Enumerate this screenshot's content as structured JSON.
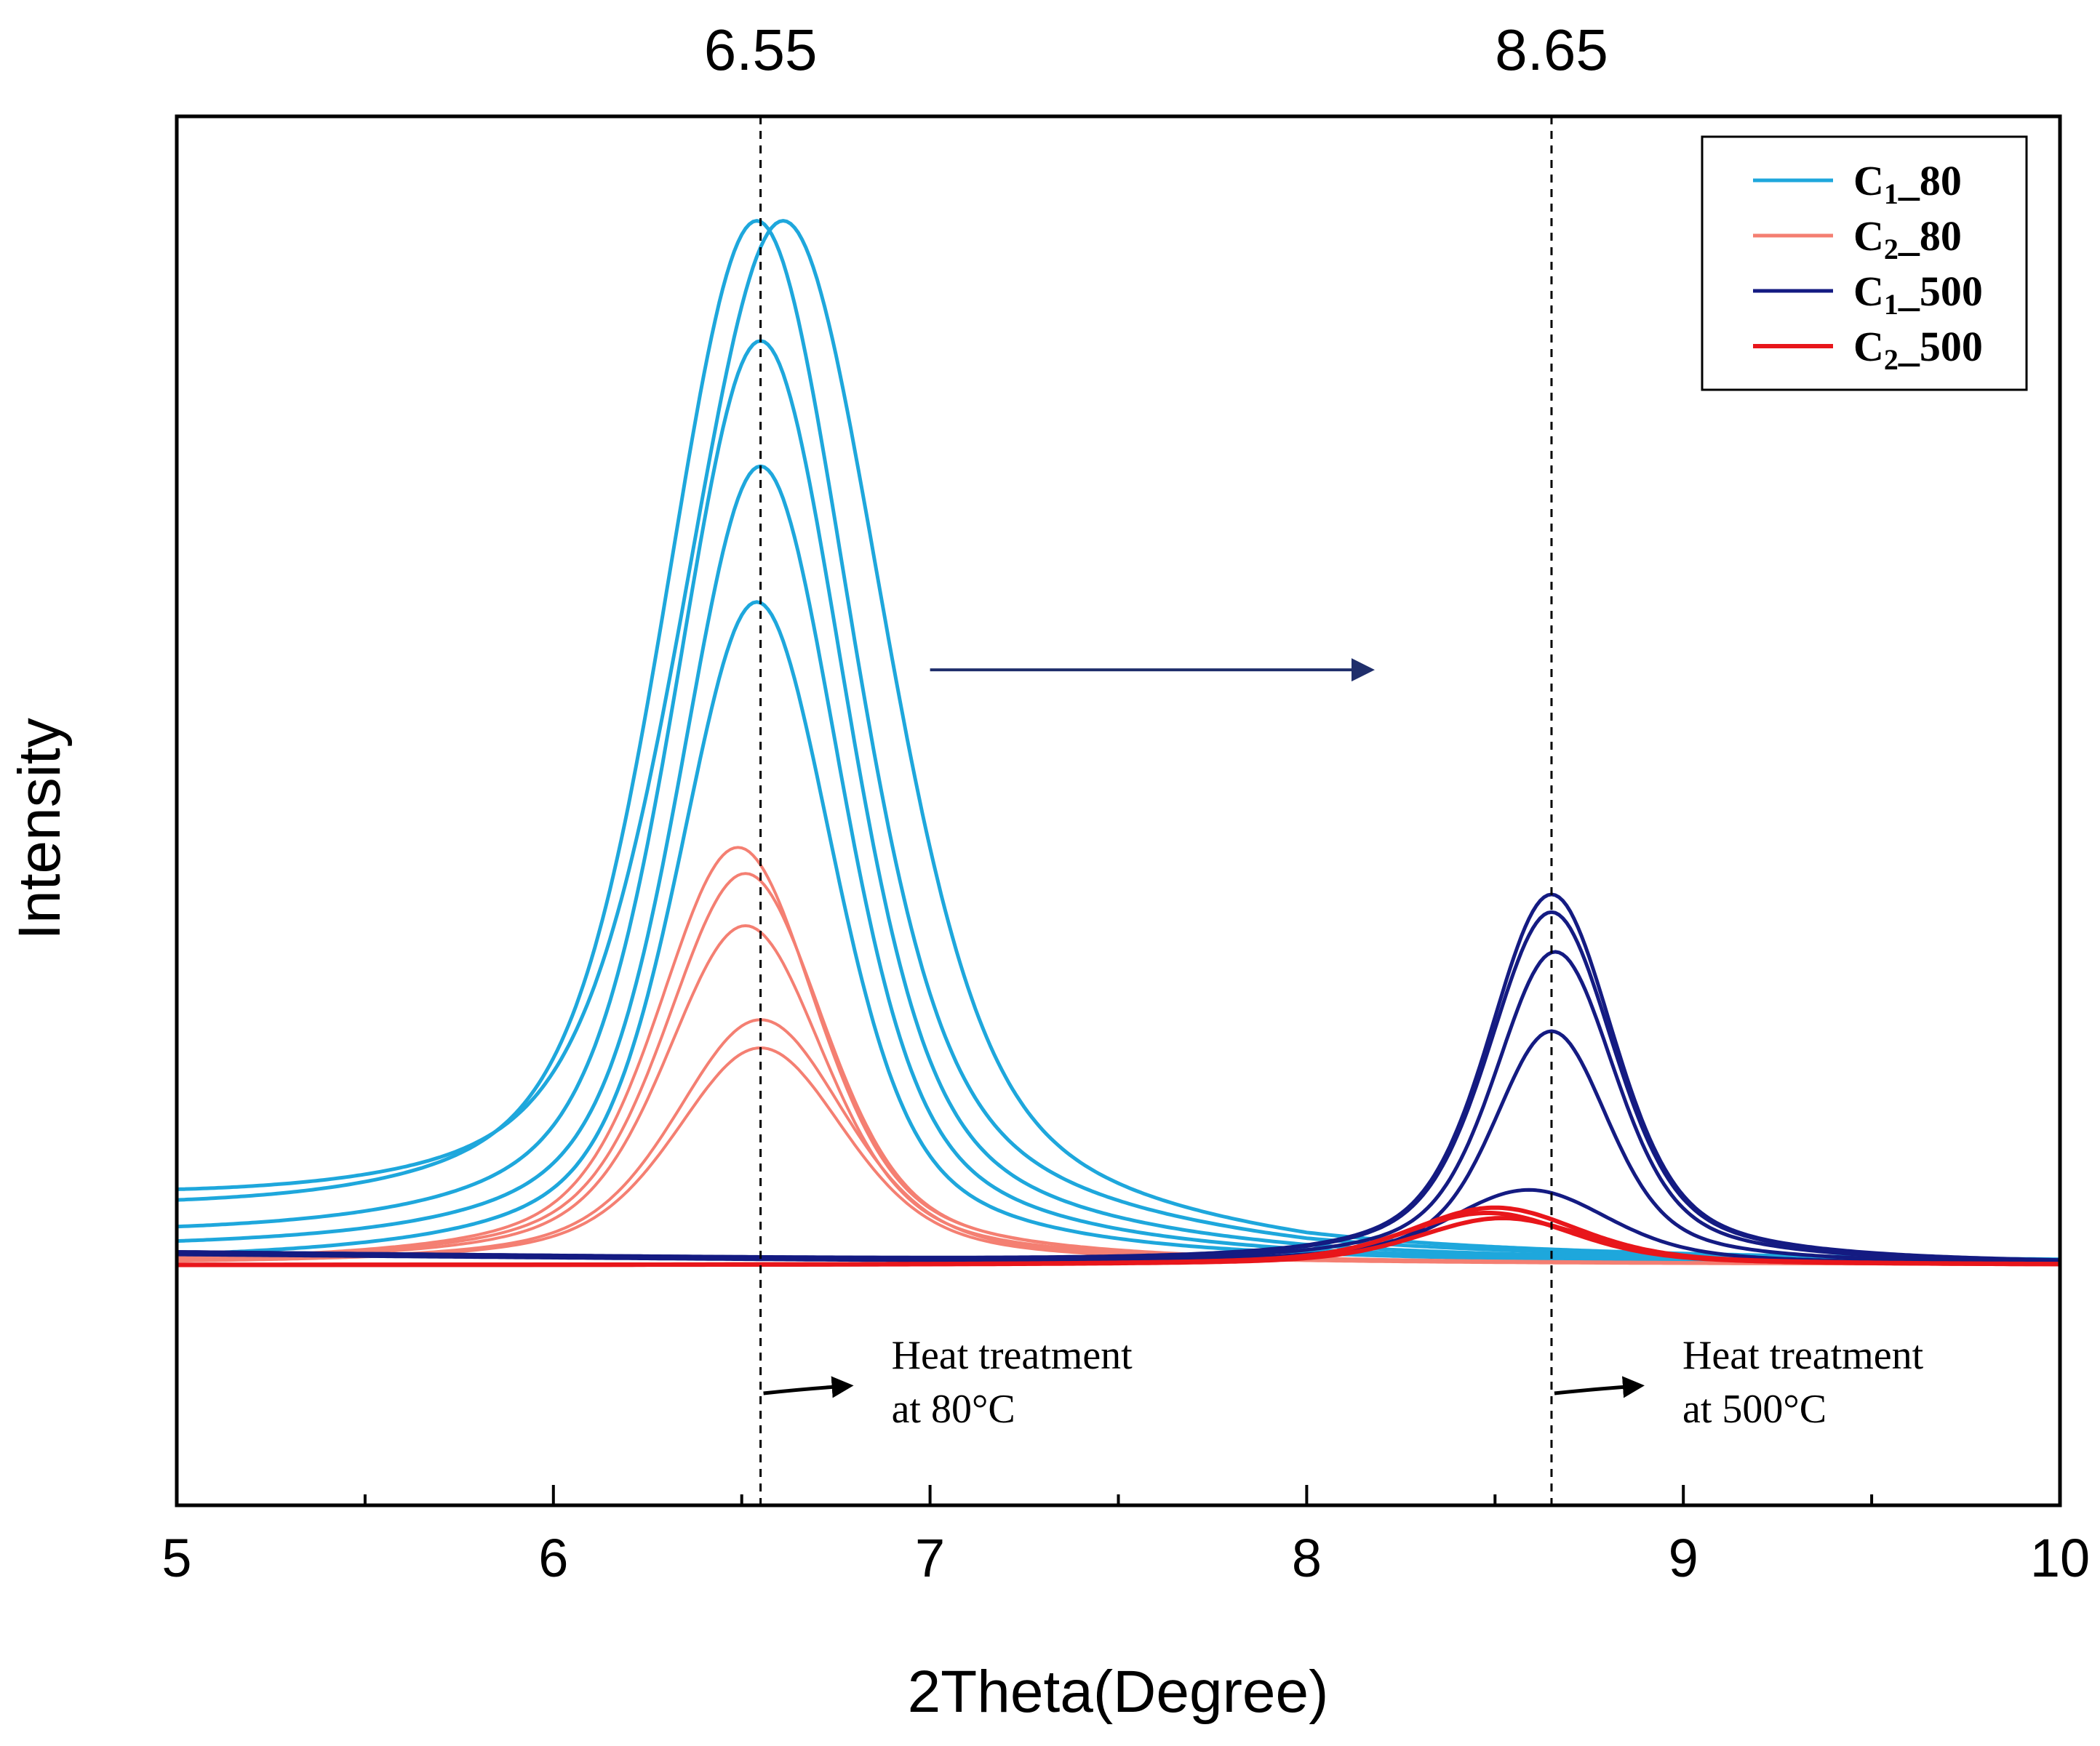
{
  "chart_data": {
    "type": "line",
    "xlabel": "2Theta(Degree)",
    "ylabel": "Intensity",
    "xlim": [
      5,
      10
    ],
    "ylim": [
      -0.23,
      1.1
    ],
    "x_ticks": [
      5,
      6,
      7,
      8,
      9,
      10
    ],
    "reference_lines": [
      {
        "x": 6.55,
        "label": "6.55"
      },
      {
        "x": 8.65,
        "label": "8.65"
      }
    ],
    "legend": {
      "placement": "top-right",
      "entries": [
        {
          "base": "C",
          "sub": "1",
          "suffix": "_80",
          "series": "C1_80"
        },
        {
          "base": "C",
          "sub": "2",
          "suffix": "_80",
          "series": "C2_80"
        },
        {
          "base": "C",
          "sub": "1",
          "suffix": "_500",
          "series": "C1_500"
        },
        {
          "base": "C",
          "sub": "2",
          "suffix": "_500",
          "series": "C2_500"
        }
      ]
    },
    "annotations": [
      {
        "at_x": 6.55,
        "lines": [
          "Heat treatment",
          "at 80°C"
        ]
      },
      {
        "at_x": 8.65,
        "lines": [
          "Heat treatment",
          "at 500°C"
        ]
      }
    ],
    "shift_arrow": {
      "from_x": 7.0,
      "to_x": 8.2,
      "y": 0.57
    },
    "series": [
      {
        "name": "C1_80",
        "color": "#1ea7dc",
        "width": 5,
        "curves": [
          {
            "center": 6.54,
            "peak": 1.0,
            "base": 0.04,
            "gw": 0.33,
            "lw": 0.36
          },
          {
            "center": 6.61,
            "peak": 1.0,
            "base": 0.05,
            "gw": 0.36,
            "lw": 0.38
          },
          {
            "center": 6.55,
            "peak": 0.885,
            "base": 0.02,
            "gw": 0.3,
            "lw": 0.33
          },
          {
            "center": 6.55,
            "peak": 0.765,
            "base": 0.01,
            "gw": 0.28,
            "lw": 0.31
          },
          {
            "center": 6.54,
            "peak": 0.635,
            "base": 0.0,
            "gw": 0.27,
            "lw": 0.3
          }
        ]
      },
      {
        "name": "C2_80",
        "color": "#f47f72",
        "width": 4,
        "curves": [
          {
            "center": 6.49,
            "peak": 0.4,
            "base": 0.0,
            "gw": 0.28,
            "lw": 0.3
          },
          {
            "center": 6.51,
            "peak": 0.375,
            "base": 0.0,
            "gw": 0.28,
            "lw": 0.3
          },
          {
            "center": 6.51,
            "peak": 0.325,
            "base": 0.0,
            "gw": 0.28,
            "lw": 0.3
          },
          {
            "center": 6.55,
            "peak": 0.235,
            "base": 0.0,
            "gw": 0.3,
            "lw": 0.32
          },
          {
            "center": 6.55,
            "peak": 0.208,
            "base": 0.0,
            "gw": 0.3,
            "lw": 0.32
          }
        ]
      },
      {
        "name": "C1_500",
        "color": "#141b82",
        "width": 5,
        "curves": [
          {
            "center": 8.65,
            "peak": 0.355,
            "base": 0.012,
            "gw": 0.22,
            "lw": 0.24
          },
          {
            "center": 8.65,
            "peak": 0.338,
            "base": 0.012,
            "gw": 0.22,
            "lw": 0.24
          },
          {
            "center": 8.66,
            "peak": 0.3,
            "base": 0.01,
            "gw": 0.21,
            "lw": 0.23
          },
          {
            "center": 8.65,
            "peak": 0.224,
            "base": 0.01,
            "gw": 0.2,
            "lw": 0.22
          },
          {
            "center": 8.59,
            "peak": 0.072,
            "base": 0.01,
            "gw": 0.28,
            "lw": 0.32
          }
        ]
      },
      {
        "name": "C2_500",
        "color": "#e8161b",
        "width": 6,
        "curves": [
          {
            "center": 8.5,
            "peak": 0.055,
            "base": 0.0,
            "gw": 0.3,
            "lw": 0.32
          },
          {
            "center": 8.48,
            "peak": 0.05,
            "base": 0.0,
            "gw": 0.3,
            "lw": 0.32
          },
          {
            "center": 8.52,
            "peak": 0.045,
            "base": 0.0,
            "gw": 0.3,
            "lw": 0.32
          }
        ]
      }
    ]
  }
}
